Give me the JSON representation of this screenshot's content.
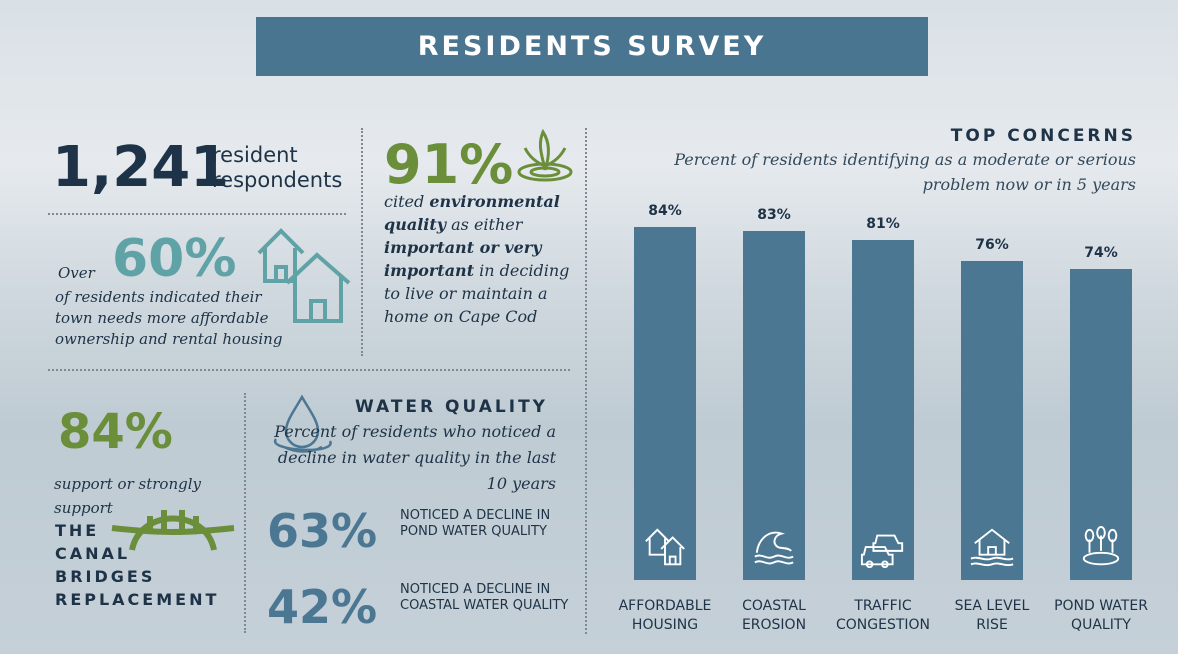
{
  "title": "RESIDENTS SURVEY",
  "respondents": {
    "number": "1,241",
    "line1": "resident",
    "line2": "respondents"
  },
  "housing": {
    "percent": "60%",
    "prefix": "Over",
    "text": "of residents indicated their town needs more affordable ownership and rental housing",
    "icon": "houses-icon"
  },
  "environment": {
    "percent": "91%",
    "icon": "plant-water-icon",
    "t1": "cited ",
    "b1": "environmental quality",
    "t2": " as either ",
    "b2": "important or very important",
    "t3": " in deciding to live or maintain a home on Cape Cod"
  },
  "bridges": {
    "percent": "84%",
    "text1": "support or strongly",
    "text2": "support",
    "caps": [
      "THE",
      "CANAL",
      "BRIDGES",
      "REPLACEMENT"
    ],
    "icon": "bridge-icon"
  },
  "water": {
    "heading": "WATER QUALITY",
    "subtitle": "Percent of residents who noticed a decline in water quality in the last 10 years",
    "icon": "water-drop-icon",
    "stats": [
      {
        "percent": "63%",
        "label": "NOTICED A DECLINE IN POND WATER QUALITY"
      },
      {
        "percent": "42%",
        "label": "NOTICED A DECLINE IN COASTAL WATER QUALITY"
      }
    ]
  },
  "colors": {
    "band": "#4a7591",
    "navy": "#1e3347",
    "teal": "#5fa3a6",
    "green": "#6b8e3a",
    "bar": "#4b7793"
  },
  "chart_data": {
    "type": "bar",
    "title": "TOP CONCERNS",
    "subtitle": "Percent of residents identifying as a moderate or serious problem now or in 5 years",
    "categories": [
      "AFFORDABLE HOUSING",
      "COASTAL EROSION",
      "TRAFFIC CONGESTION",
      "SEA LEVEL RISE",
      "POND WATER QUALITY"
    ],
    "values": [
      84,
      83,
      81,
      76,
      74
    ],
    "labels": [
      "84%",
      "83%",
      "81%",
      "76%",
      "74%"
    ],
    "ylim": [
      0,
      100
    ],
    "grid": false,
    "icons": [
      "houses-icon",
      "wave-icon",
      "cars-icon",
      "flooded-house-icon",
      "pond-trees-icon"
    ]
  }
}
